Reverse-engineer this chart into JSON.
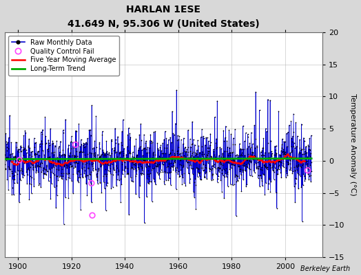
{
  "title": "HARLAN 1ESE",
  "subtitle": "41.649 N, 95.306 W (United States)",
  "ylabel": "Temperature Anomaly (°C)",
  "credit": "Berkeley Earth",
  "xlim": [
    1895,
    2014
  ],
  "ylim": [
    -15,
    20
  ],
  "yticks": [
    -15,
    -10,
    -5,
    0,
    5,
    10,
    15,
    20
  ],
  "xticks": [
    1900,
    1920,
    1940,
    1960,
    1980,
    2000
  ],
  "seed": 12345,
  "bg_color": "#d8d8d8",
  "plot_bg_color": "#ffffff",
  "grid_color": "#b0b0b0",
  "raw_line_color": "#0000cc",
  "raw_dot_color": "#000000",
  "moving_avg_color": "#ff0000",
  "trend_color": "#00aa00",
  "qc_fail_color": "#ff44ff",
  "n_years": 115,
  "start_year": 1895,
  "qc_years": [
    1900.5,
    1921.5,
    1927.5,
    1927.8,
    2008.5
  ],
  "qc_vals": [
    0.1,
    2.5,
    -3.5,
    -8.5,
    -1.5
  ]
}
